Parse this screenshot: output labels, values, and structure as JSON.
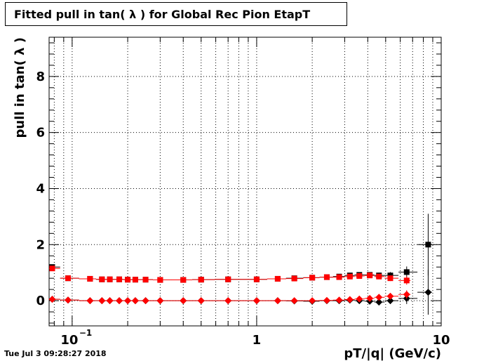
{
  "footer": {
    "date": "Tue Jul  3 09:28:27 2018"
  },
  "colors": {
    "black": "#000000",
    "red": "#ff0000"
  },
  "chart_data": {
    "type": "scatter",
    "title": "Fitted pull in tan( λ ) for Global Rec Pion EtapT",
    "xlabel": "pT/|q| (GeV/c)",
    "ylabel": "pull in tan( λ )",
    "xscale": "log",
    "xlim": [
      0.075,
      10
    ],
    "ylim": [
      -0.9,
      9.4
    ],
    "grid": true,
    "x_major_ticks": [
      0.1,
      1,
      10
    ],
    "x_major_tick_labels": [
      "10",
      "−1",
      "1",
      "10"
    ],
    "y_ticks": [
      0,
      2,
      4,
      6,
      8
    ],
    "y_tick_labels": [
      "0",
      "2",
      "4",
      "6",
      "8"
    ],
    "series": [
      {
        "marker": "square",
        "color": "#000000",
        "x": [
          0.078,
          0.095,
          0.125,
          0.145,
          0.16,
          0.18,
          0.2,
          0.22,
          0.25,
          0.3,
          0.4,
          0.5,
          0.7,
          1.0,
          1.3,
          1.6,
          2.0,
          2.4,
          2.8,
          3.2,
          3.6,
          4.1,
          4.6,
          5.3,
          6.5,
          8.5
        ],
        "y": [
          1.2,
          0.8,
          0.78,
          0.76,
          0.76,
          0.76,
          0.75,
          0.75,
          0.75,
          0.74,
          0.74,
          0.75,
          0.76,
          0.76,
          0.78,
          0.8,
          0.82,
          0.84,
          0.86,
          0.9,
          0.92,
          0.92,
          0.9,
          0.9,
          1.02,
          2.0
        ],
        "yerr": [
          0.08,
          0.03,
          0.02,
          0.02,
          0.02,
          0.02,
          0.02,
          0.02,
          0.02,
          0.02,
          0.02,
          0.02,
          0.02,
          0.02,
          0.02,
          0.03,
          0.03,
          0.04,
          0.05,
          0.06,
          0.07,
          0.08,
          0.1,
          0.12,
          0.2,
          1.1
        ]
      },
      {
        "marker": "square",
        "color": "#ff0000",
        "x": [
          0.078,
          0.095,
          0.125,
          0.145,
          0.16,
          0.18,
          0.2,
          0.22,
          0.25,
          0.3,
          0.4,
          0.5,
          0.7,
          1.0,
          1.3,
          1.6,
          2.0,
          2.4,
          2.8,
          3.2,
          3.6,
          4.1,
          4.6,
          5.3,
          6.5
        ],
        "y": [
          1.15,
          0.8,
          0.78,
          0.76,
          0.76,
          0.76,
          0.75,
          0.75,
          0.75,
          0.74,
          0.74,
          0.75,
          0.76,
          0.76,
          0.78,
          0.79,
          0.82,
          0.84,
          0.84,
          0.86,
          0.88,
          0.9,
          0.86,
          0.8,
          0.72
        ],
        "yerr": [
          0.08,
          0.03,
          0.02,
          0.02,
          0.02,
          0.02,
          0.02,
          0.02,
          0.02,
          0.02,
          0.02,
          0.02,
          0.02,
          0.02,
          0.02,
          0.03,
          0.03,
          0.04,
          0.04,
          0.05,
          0.06,
          0.07,
          0.08,
          0.1,
          0.15
        ]
      },
      {
        "marker": "diamond",
        "color": "#000000",
        "x": [
          0.078,
          0.095,
          0.125,
          0.145,
          0.16,
          0.18,
          0.2,
          0.22,
          0.25,
          0.3,
          0.4,
          0.5,
          0.7,
          1.0,
          1.3,
          1.6,
          2.0,
          2.4,
          2.8,
          3.2,
          3.6,
          4.1,
          4.6,
          5.3,
          6.5,
          8.5
        ],
        "y": [
          0.05,
          0.02,
          0.0,
          0.0,
          0.0,
          0.0,
          0.0,
          0.0,
          0.0,
          0.0,
          0.0,
          0.0,
          0.0,
          0.0,
          0.0,
          -0.01,
          -0.02,
          0.0,
          0.0,
          0.02,
          0.0,
          -0.02,
          -0.05,
          0.0,
          0.08,
          0.3
        ],
        "yerr": [
          0.06,
          0.02,
          0.02,
          0.02,
          0.02,
          0.02,
          0.02,
          0.02,
          0.02,
          0.02,
          0.02,
          0.02,
          0.02,
          0.02,
          0.02,
          0.03,
          0.03,
          0.04,
          0.05,
          0.06,
          0.07,
          0.08,
          0.1,
          0.12,
          0.2,
          0.8
        ]
      },
      {
        "marker": "diamond",
        "color": "#ff0000",
        "x": [
          0.078,
          0.095,
          0.125,
          0.145,
          0.16,
          0.18,
          0.2,
          0.22,
          0.25,
          0.3,
          0.4,
          0.5,
          0.7,
          1.0,
          1.3,
          1.6,
          2.0,
          2.4,
          2.8,
          3.2,
          3.6,
          4.1,
          4.6,
          5.3,
          6.5
        ],
        "y": [
          0.05,
          0.02,
          0.0,
          0.0,
          0.0,
          0.0,
          0.0,
          0.0,
          0.0,
          0.0,
          0.0,
          0.0,
          0.0,
          0.0,
          0.0,
          0.0,
          0.0,
          0.01,
          0.02,
          0.04,
          0.06,
          0.08,
          0.12,
          0.16,
          0.22
        ],
        "yerr": [
          0.06,
          0.02,
          0.02,
          0.02,
          0.02,
          0.02,
          0.02,
          0.02,
          0.02,
          0.02,
          0.02,
          0.02,
          0.02,
          0.02,
          0.02,
          0.03,
          0.03,
          0.04,
          0.04,
          0.05,
          0.06,
          0.07,
          0.08,
          0.1,
          0.15
        ]
      }
    ]
  }
}
